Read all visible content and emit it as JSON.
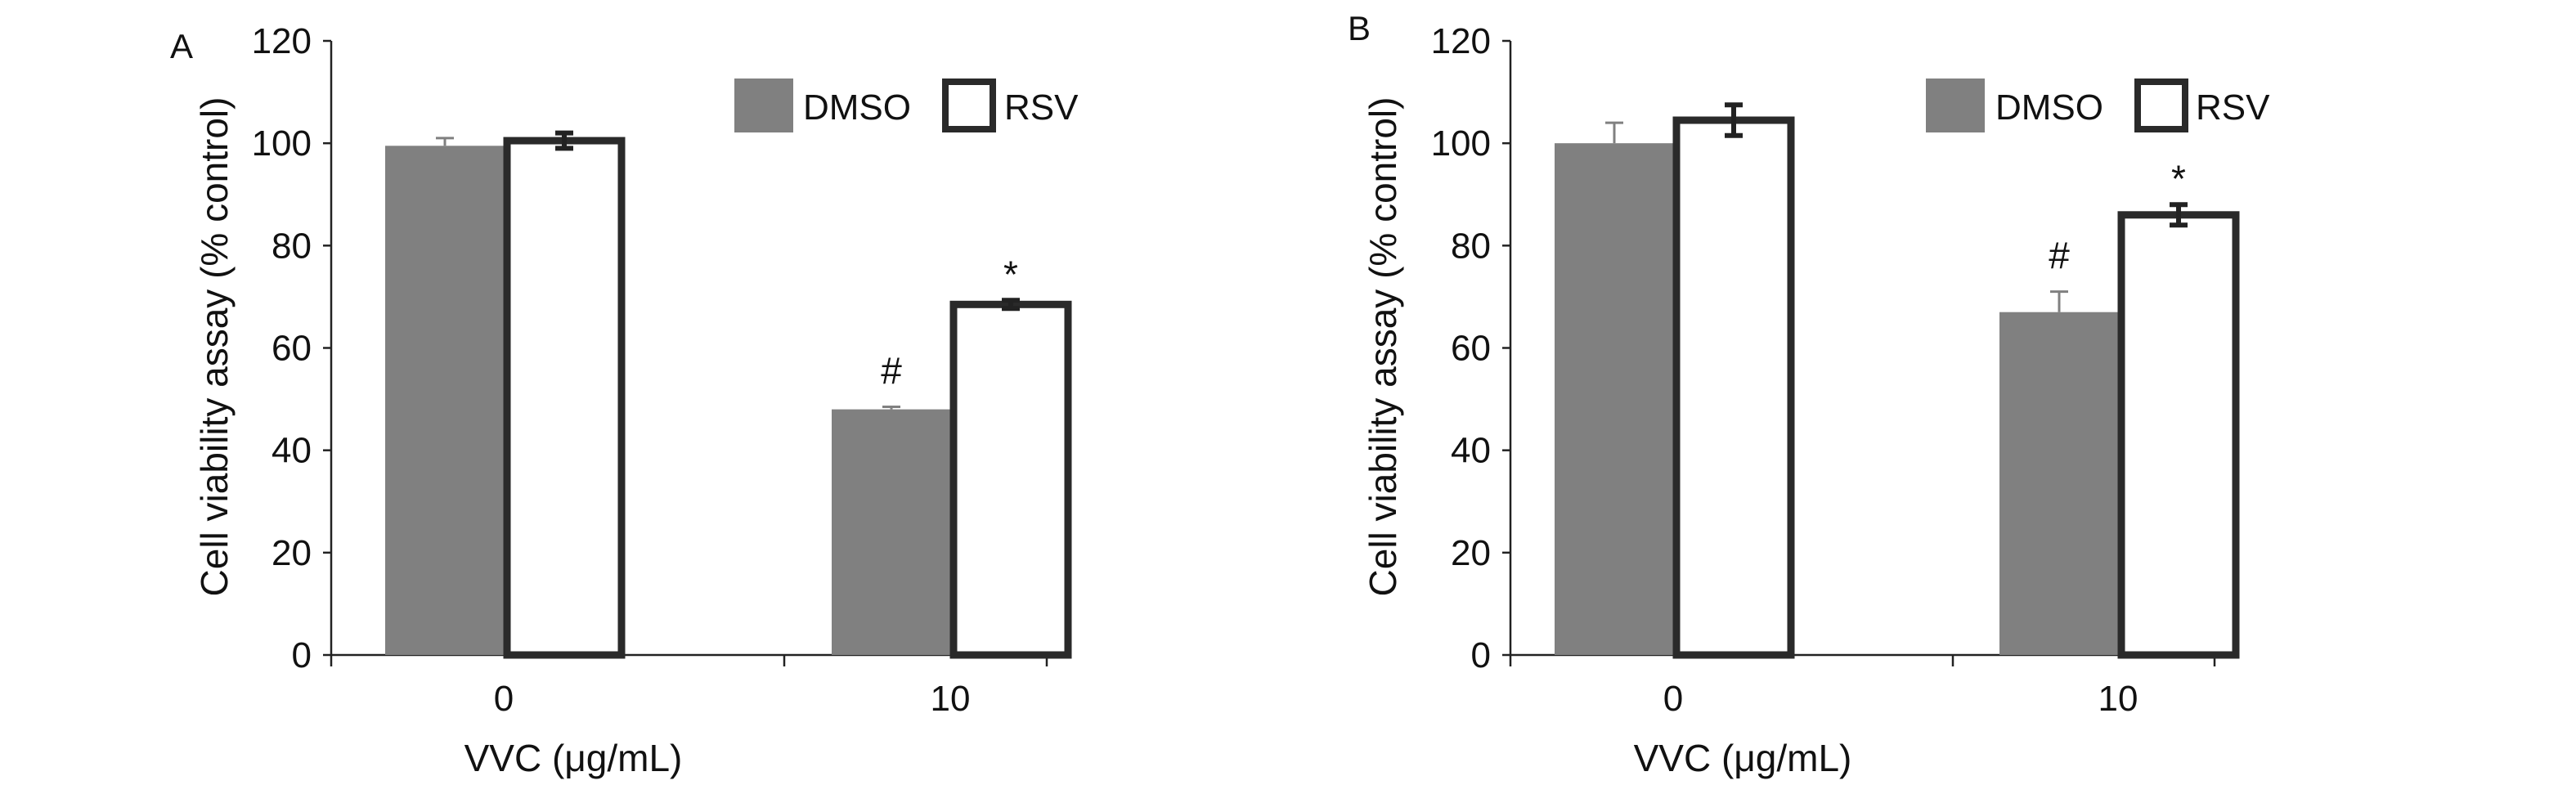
{
  "chart_data": [
    {
      "type": "bar",
      "panel_label": "A",
      "categories": [
        "0",
        "10"
      ],
      "series": [
        {
          "name": "DMSO",
          "values": [
            99.5,
            48.0
          ],
          "errors": [
            1.5,
            0.5
          ],
          "color": "#808080",
          "style": "filled"
        },
        {
          "name": "RSV",
          "values": [
            100.5,
            68.5
          ],
          "errors": [
            1.5,
            0.8
          ],
          "color": "#ffffff",
          "style": "outlined"
        }
      ],
      "annotations": [
        {
          "category": "10",
          "series": "DMSO",
          "text": "#"
        },
        {
          "category": "10",
          "series": "RSV",
          "text": "*"
        }
      ],
      "xlabel": "VVC (μg/mL)",
      "ylabel": "Cell viability assay (% control)",
      "ylim": [
        0,
        120
      ],
      "yticks": [
        "0",
        "20",
        "40",
        "60",
        "80",
        "100",
        "120"
      ],
      "grid": false,
      "legend": "top-right"
    },
    {
      "type": "bar",
      "panel_label": "B",
      "categories": [
        "0",
        "10"
      ],
      "series": [
        {
          "name": "DMSO",
          "values": [
            100.0,
            67.0
          ],
          "errors": [
            4.0,
            4.0
          ],
          "color": "#808080",
          "style": "filled"
        },
        {
          "name": "RSV",
          "values": [
            104.5,
            86.0
          ],
          "errors": [
            3.0,
            2.0
          ],
          "color": "#ffffff",
          "style": "outlined"
        }
      ],
      "annotations": [
        {
          "category": "10",
          "series": "DMSO",
          "text": "#"
        },
        {
          "category": "10",
          "series": "RSV",
          "text": "*"
        }
      ],
      "xlabel": "VVC (μg/mL)",
      "ylabel": "Cell viability assay (% control)",
      "ylim": [
        0,
        120
      ],
      "yticks": [
        "0",
        "20",
        "40",
        "60",
        "80",
        "100",
        "120"
      ],
      "grid": false,
      "legend": "top-right"
    }
  ]
}
